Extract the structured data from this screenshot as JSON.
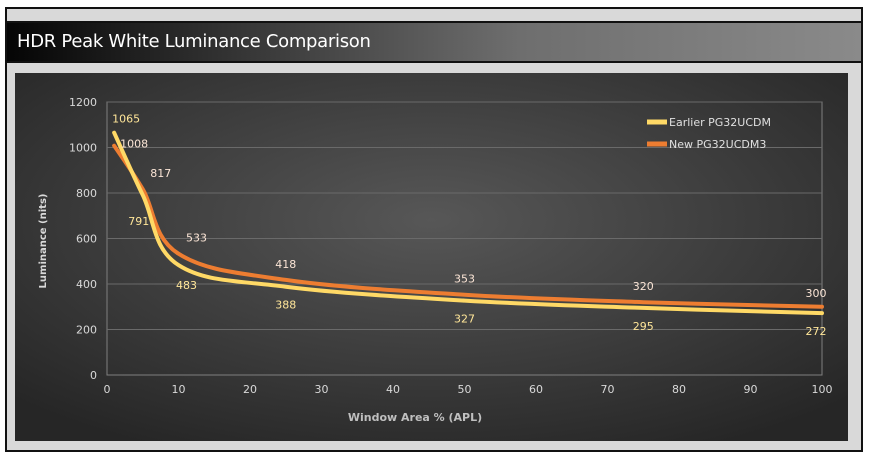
{
  "title": "HDR Peak White Luminance Comparison",
  "chart_data": {
    "type": "line",
    "title": "HDR Peak White Luminance Comparison",
    "xlabel": "Window Area % (APL)",
    "ylabel": "Luminance (nits)",
    "xlim": [
      0,
      100
    ],
    "ylim": [
      0,
      1200
    ],
    "xticks": [
      "0",
      "10",
      "20",
      "30",
      "40",
      "50",
      "60",
      "70",
      "80",
      "90",
      "100"
    ],
    "yticks": [
      "0",
      "200",
      "400",
      "600",
      "800",
      "1000",
      "1200"
    ],
    "grid": true,
    "legend": "top-right",
    "x": [
      1,
      5,
      10,
      25,
      50,
      75,
      100
    ],
    "series": [
      {
        "name": "Earlier PG32UCDM",
        "color": "#ffd966",
        "values": [
          1065,
          791,
          483,
          388,
          327,
          295,
          272
        ]
      },
      {
        "name": "New PG32UCDM3",
        "color": "#ed7d31",
        "values": [
          1008,
          817,
          533,
          418,
          353,
          320,
          300
        ]
      }
    ]
  }
}
